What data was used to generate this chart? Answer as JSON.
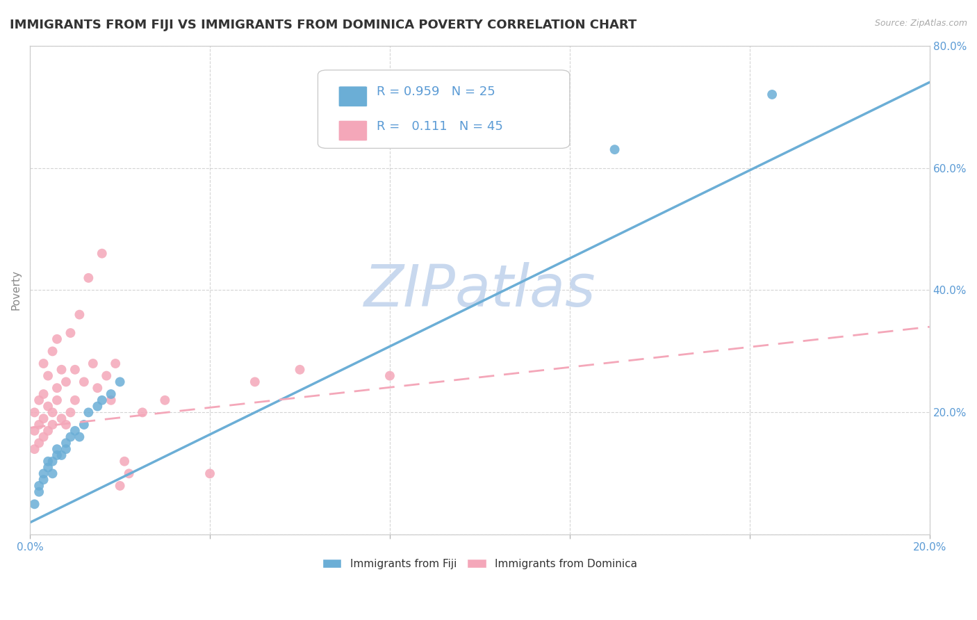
{
  "title": "IMMIGRANTS FROM FIJI VS IMMIGRANTS FROM DOMINICA POVERTY CORRELATION CHART",
  "source": "Source: ZipAtlas.com",
  "ylabel": "Poverty",
  "xlim": [
    0.0,
    0.2
  ],
  "ylim": [
    0.0,
    0.8
  ],
  "xticks": [
    0.0,
    0.04,
    0.08,
    0.12,
    0.16,
    0.2
  ],
  "yticks": [
    0.0,
    0.2,
    0.4,
    0.6,
    0.8
  ],
  "xticklabels": [
    "0.0%",
    "",
    "",
    "",
    "",
    "20.0%"
  ],
  "yticklabels_right": [
    "",
    "20.0%",
    "40.0%",
    "60.0%",
    "80.0%"
  ],
  "fiji_color": "#6baed6",
  "dominica_color": "#f4a7b9",
  "fiji_R": 0.959,
  "fiji_N": 25,
  "dominica_R": 0.111,
  "dominica_N": 45,
  "fiji_scatter_x": [
    0.001,
    0.002,
    0.002,
    0.003,
    0.003,
    0.004,
    0.004,
    0.005,
    0.005,
    0.006,
    0.006,
    0.007,
    0.008,
    0.008,
    0.009,
    0.01,
    0.011,
    0.012,
    0.013,
    0.015,
    0.016,
    0.018,
    0.02,
    0.13,
    0.165
  ],
  "fiji_scatter_y": [
    0.05,
    0.07,
    0.08,
    0.09,
    0.1,
    0.11,
    0.12,
    0.1,
    0.12,
    0.13,
    0.14,
    0.13,
    0.14,
    0.15,
    0.16,
    0.17,
    0.16,
    0.18,
    0.2,
    0.21,
    0.22,
    0.23,
    0.25,
    0.63,
    0.72
  ],
  "dominica_scatter_x": [
    0.001,
    0.001,
    0.001,
    0.002,
    0.002,
    0.002,
    0.003,
    0.003,
    0.003,
    0.003,
    0.004,
    0.004,
    0.004,
    0.005,
    0.005,
    0.005,
    0.006,
    0.006,
    0.006,
    0.007,
    0.007,
    0.008,
    0.008,
    0.009,
    0.009,
    0.01,
    0.01,
    0.011,
    0.012,
    0.013,
    0.014,
    0.015,
    0.016,
    0.017,
    0.018,
    0.019,
    0.02,
    0.021,
    0.022,
    0.025,
    0.03,
    0.04,
    0.05,
    0.06,
    0.08
  ],
  "dominica_scatter_y": [
    0.14,
    0.17,
    0.2,
    0.15,
    0.18,
    0.22,
    0.16,
    0.19,
    0.23,
    0.28,
    0.17,
    0.21,
    0.26,
    0.18,
    0.2,
    0.3,
    0.22,
    0.24,
    0.32,
    0.19,
    0.27,
    0.18,
    0.25,
    0.2,
    0.33,
    0.22,
    0.27,
    0.36,
    0.25,
    0.42,
    0.28,
    0.24,
    0.46,
    0.26,
    0.22,
    0.28,
    0.08,
    0.12,
    0.1,
    0.2,
    0.22,
    0.1,
    0.25,
    0.27,
    0.26
  ],
  "fiji_line_x": [
    0.0,
    0.2
  ],
  "fiji_line_y": [
    0.02,
    0.74
  ],
  "dominica_line_x": [
    0.0,
    0.2
  ],
  "dominica_line_y": [
    0.175,
    0.34
  ],
  "watermark": "ZIPatlas",
  "background_color": "#ffffff",
  "grid_color": "#d0d0d0",
  "title_color": "#333333",
  "axis_label_color": "#888888",
  "tick_label_color": "#5b9bd5",
  "legend_R_color": "#5b9bd5",
  "title_fontsize": 13,
  "legend_fontsize": 13,
  "watermark_color": "#c8d8ee",
  "watermark_fontsize": 60
}
